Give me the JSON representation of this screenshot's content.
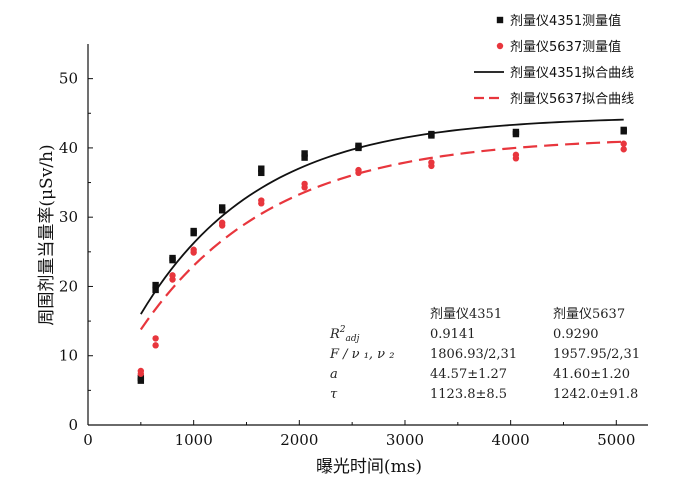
{
  "chart_data": {
    "type": "scatter",
    "xlabel": "曝光时间(ms)",
    "ylabel": "周围剂量当量率(μSv/h)",
    "xlim": [
      0,
      5300
    ],
    "ylim": [
      0,
      55
    ],
    "xticks": [
      0,
      1000,
      2000,
      3000,
      4000,
      5000
    ],
    "yticks": [
      0,
      10,
      20,
      30,
      40,
      50
    ],
    "grid": false,
    "legend_position": "top-right",
    "series": [
      {
        "name": "剂量仪4351测量值",
        "kind": "scatter",
        "marker": "square",
        "color": "#111111",
        "points": [
          [
            500,
            6.4
          ],
          [
            500,
            6.8
          ],
          [
            640,
            19.5
          ],
          [
            640,
            20.2
          ],
          [
            800,
            23.8
          ],
          [
            800,
            24.1
          ],
          [
            1000,
            27.7
          ],
          [
            1000,
            28.0
          ],
          [
            1270,
            31.0
          ],
          [
            1270,
            31.4
          ],
          [
            1640,
            36.4
          ],
          [
            1640,
            37.0
          ],
          [
            2050,
            38.6
          ],
          [
            2050,
            39.2
          ],
          [
            2560,
            40.0
          ],
          [
            2560,
            40.3
          ],
          [
            3250,
            41.8
          ],
          [
            3250,
            42.0
          ],
          [
            4050,
            42.0
          ],
          [
            4050,
            42.3
          ],
          [
            5070,
            42.4
          ],
          [
            5070,
            42.6
          ]
        ]
      },
      {
        "name": "剂量仪5637测量值",
        "kind": "scatter",
        "marker": "circle",
        "color": "#e8363d",
        "points": [
          [
            500,
            7.4
          ],
          [
            500,
            7.8
          ],
          [
            640,
            11.5
          ],
          [
            640,
            12.5
          ],
          [
            800,
            21.0
          ],
          [
            800,
            21.6
          ],
          [
            1000,
            24.9
          ],
          [
            1000,
            25.3
          ],
          [
            1270,
            28.8
          ],
          [
            1270,
            29.2
          ],
          [
            1640,
            32.0
          ],
          [
            1640,
            32.4
          ],
          [
            2050,
            34.3
          ],
          [
            2050,
            34.8
          ],
          [
            2560,
            36.4
          ],
          [
            2560,
            36.8
          ],
          [
            3250,
            37.4
          ],
          [
            3250,
            37.9
          ],
          [
            4050,
            38.5
          ],
          [
            4050,
            39.0
          ],
          [
            5070,
            39.8
          ],
          [
            5070,
            40.6
          ]
        ]
      },
      {
        "name": "剂量仪4351拟合曲线",
        "kind": "line",
        "style": "solid",
        "color": "#111111",
        "a": 44.57,
        "tau": 1123.8,
        "x_start": 500,
        "x_end": 5070
      },
      {
        "name": "剂量仪5637拟合曲线",
        "kind": "line",
        "style": "dashed",
        "color": "#e8363d",
        "a": 41.6,
        "tau": 1242.0,
        "x_start": 500,
        "x_end": 5070
      }
    ],
    "stats_table": {
      "headers": [
        "",
        "剂量仪4351",
        "剂量仪5637"
      ],
      "rows": [
        {
          "label_main": "R",
          "label_sup": "2",
          "label_sub": "adj",
          "v1": "0.9141",
          "v2": "0.9290"
        },
        {
          "label_main": "F / ν ₁, ν ₂",
          "label_sup": "",
          "label_sub": "",
          "v1": "1806.93/2,31",
          "v2": "1957.95/2,31"
        },
        {
          "label_main": "a",
          "label_sup": "",
          "label_sub": "",
          "v1": "44.57±1.27",
          "v2": "41.60±1.20"
        },
        {
          "label_main": "τ",
          "label_sup": "",
          "label_sub": "",
          "v1": "1123.8±8.5",
          "v2": "1242.0±91.8"
        }
      ]
    }
  }
}
